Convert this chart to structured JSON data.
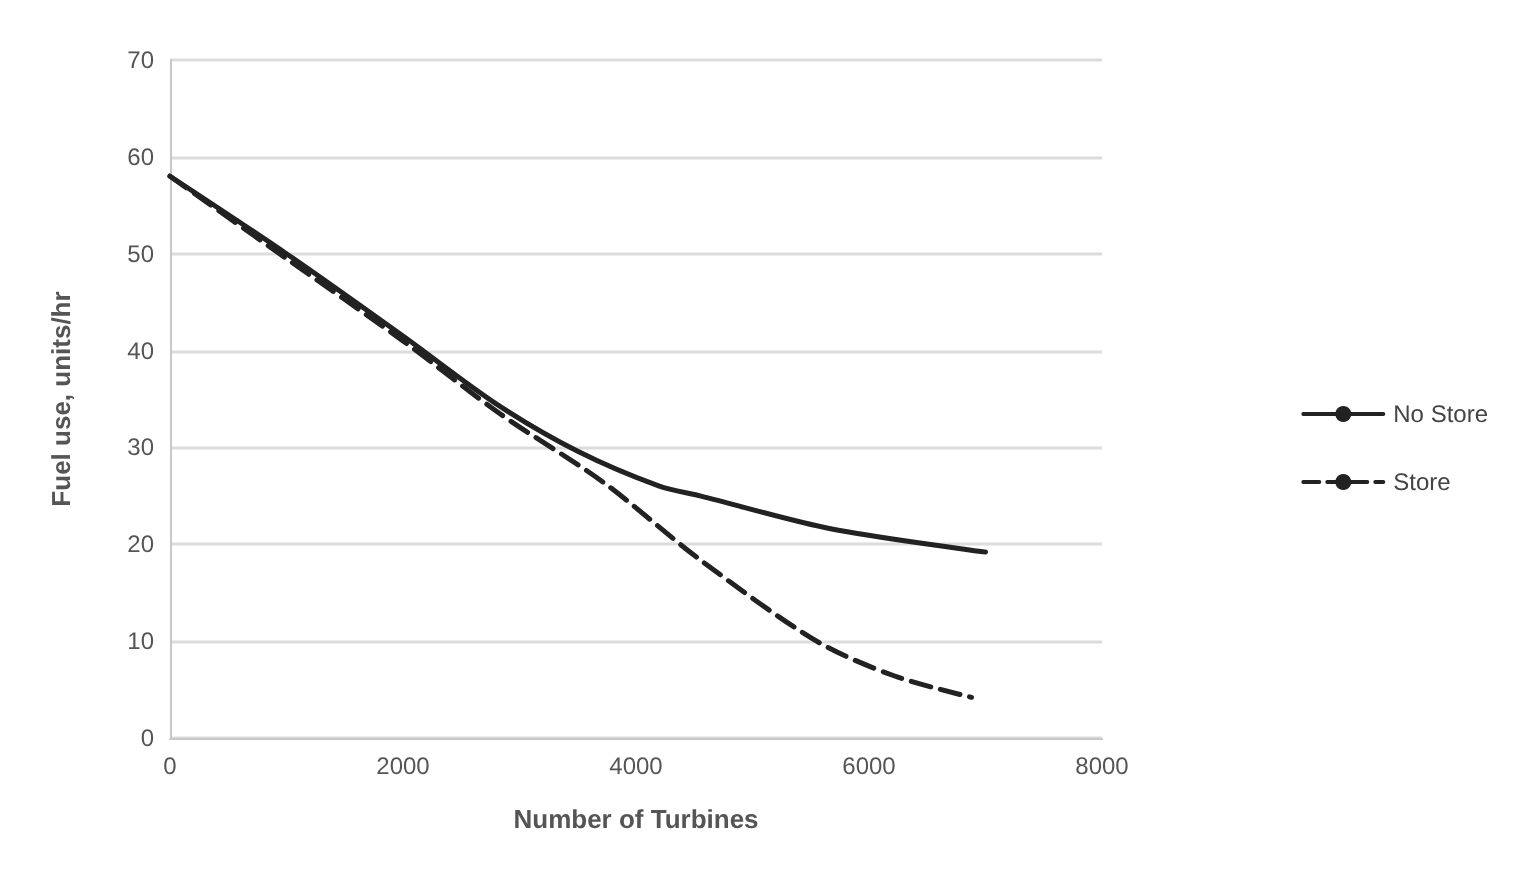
{
  "chart_data": {
    "type": "line",
    "xlabel": "Number of Turbines",
    "ylabel": "Fuel use, units/hr",
    "xlim": [
      0,
      8000
    ],
    "xticks": [
      0,
      2000,
      4000,
      6000,
      8000
    ],
    "ylim": [
      0,
      70
    ],
    "yticks": [
      0,
      10,
      20,
      30,
      40,
      50,
      60,
      70
    ],
    "grid": "y",
    "legend": "right",
    "marker": "none",
    "series": [
      {
        "name": "No Store",
        "color": "#222222",
        "line_style": "solid",
        "x": [
          0,
          1000,
          2000,
          2800,
          3500,
          4200,
          4550,
          5670,
          7000
        ],
        "values": [
          58,
          50,
          41.5,
          34.5,
          29.6,
          26,
          25,
          21.6,
          19.2
        ]
      },
      {
        "name": "Store",
        "color": "#222222",
        "line_style": "dashed",
        "x": [
          0,
          1000,
          2000,
          2830,
          3720,
          4550,
          5550,
          6220,
          6880
        ],
        "values": [
          58,
          49.5,
          41,
          33.5,
          26.4,
          18.4,
          10,
          6.4,
          4.2
        ]
      }
    ]
  }
}
